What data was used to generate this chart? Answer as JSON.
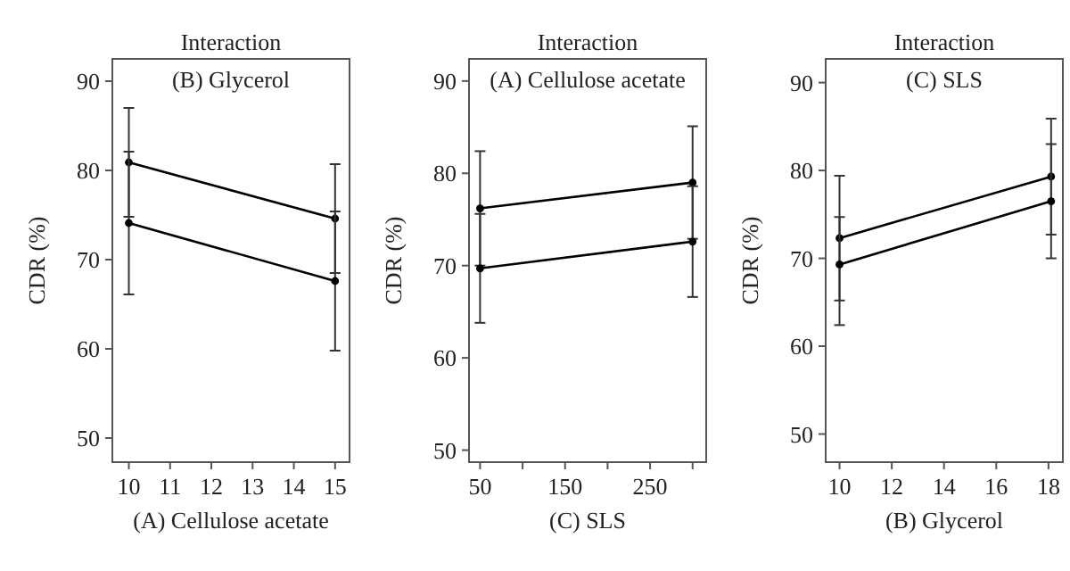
{
  "chart_data": [
    {
      "type": "line",
      "title": "Interaction",
      "subtitle": "(B) Glycerol",
      "xlabel": "(A) Cellulose acetate",
      "ylabel": "CDR (%)",
      "x": [
        10,
        15
      ],
      "xlim": [
        9.6,
        15.35
      ],
      "xticks": [
        10,
        11,
        12,
        13,
        14,
        15
      ],
      "ylim": [
        47.3,
        92.5
      ],
      "yticks": [
        50,
        60,
        70,
        80,
        90
      ],
      "grid": false,
      "marker": "circle",
      "line_style": "solid",
      "series": [
        {
          "color": "#000000",
          "values": [
            80.9,
            74.6
          ],
          "errors": [
            6.1,
            6.1
          ]
        },
        {
          "color": "#000000",
          "values": [
            74.1,
            67.6
          ],
          "errors": [
            8,
            7.8
          ]
        }
      ]
    },
    {
      "type": "line",
      "title": "Interaction",
      "subtitle": "(A) Cellulose acetate",
      "xlabel": "(C) SLS",
      "ylabel": "CDR (%)",
      "x": [
        50,
        300
      ],
      "xlim": [
        37,
        316
      ],
      "xticks": [
        50,
        {
          "value": 100,
          "label": null
        },
        150,
        {
          "value": 200,
          "label": null
        },
        250,
        {
          "value": 300,
          "label": null
        }
      ],
      "ylim": [
        48.7,
        92.4
      ],
      "yticks": [
        50,
        60,
        70,
        80,
        90
      ],
      "grid": false,
      "marker": "circle",
      "line_style": "solid",
      "series": [
        {
          "color": "#000000",
          "values": [
            76.2,
            79
          ],
          "errors": [
            6.2,
            6.1
          ]
        },
        {
          "color": "#000000",
          "values": [
            69.7,
            72.6
          ],
          "errors": [
            5.9,
            6
          ]
        }
      ]
    },
    {
      "type": "line",
      "title": "Interaction",
      "subtitle": "(C) SLS",
      "xlabel": "(B) Glycerol",
      "ylabel": "CDR (%)",
      "x": [
        10,
        18.1
      ],
      "xlim": [
        9.47,
        18.55
      ],
      "xticks": [
        10,
        12,
        14,
        16,
        18
      ],
      "ylim": [
        46.8,
        92.7
      ],
      "yticks": [
        50,
        60,
        70,
        80,
        90
      ],
      "grid": false,
      "marker": "circle",
      "line_style": "solid",
      "series": [
        {
          "color": "#000000",
          "values": [
            72.3,
            79.3
          ],
          "errors": [
            7.1,
            6.6
          ]
        },
        {
          "color": "#000000",
          "values": [
            69.3,
            76.5
          ],
          "errors": [
            [
              62.4,
              74.7
            ],
            6.5
          ]
        }
      ]
    }
  ]
}
